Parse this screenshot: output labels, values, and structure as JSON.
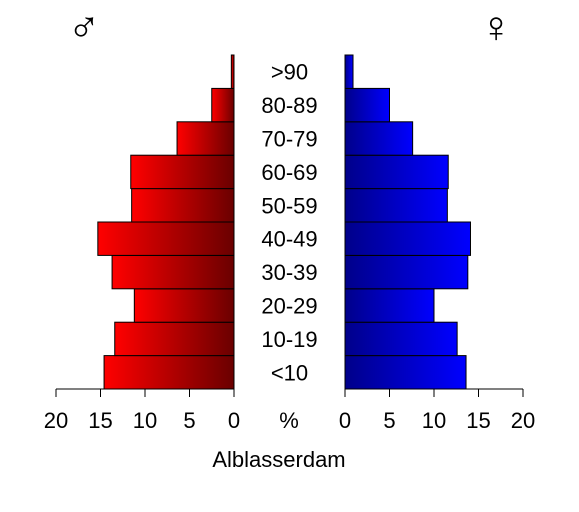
{
  "chart_data": {
    "type": "bar",
    "title": "Alblasserdam",
    "male_symbol": "♂",
    "female_symbol": "♀",
    "center_axis_label": "%",
    "categories": [
      "<10",
      "10-19",
      "20-29",
      "30-39",
      "40-49",
      "50-59",
      "60-69",
      "70-79",
      "80-89",
      ">90"
    ],
    "series": [
      {
        "values": [
          14.6,
          13.4,
          11.2,
          13.7,
          15.3,
          11.5,
          11.6,
          6.4,
          2.5,
          0.3
        ]
      },
      {
        "values": [
          13.6,
          12.6,
          10.0,
          13.8,
          14.1,
          11.5,
          11.6,
          7.6,
          5.0,
          0.9
        ]
      }
    ],
    "xlim": [
      0,
      20
    ],
    "x_ticks": [
      0,
      5,
      10,
      15,
      20
    ],
    "colors": {
      "male_light": "#ff0000",
      "male_dark": "#6a0000",
      "female_dark": "#00008a",
      "female_light": "#0000ff"
    }
  }
}
